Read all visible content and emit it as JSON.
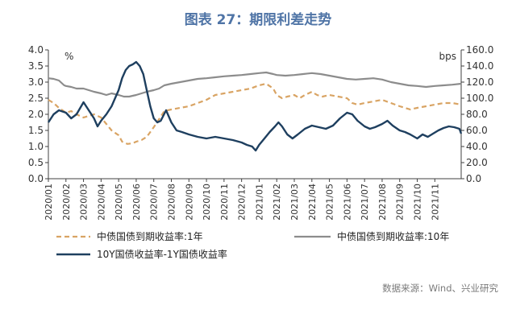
{
  "title": "图表 27：期限利差走势",
  "source": "数据来源：Wind、兴业研究",
  "chart_data": {
    "type": "line",
    "left_axis": {
      "unit": "%",
      "range": [
        0,
        4
      ],
      "ticks": [
        "0.0",
        "0.5",
        "1.0",
        "1.5",
        "2.0",
        "2.5",
        "3.0",
        "3.5",
        "4.0"
      ]
    },
    "right_axis": {
      "unit": "bps",
      "range": [
        0,
        160
      ],
      "ticks": [
        "0.0",
        "20.0",
        "40.0",
        "60.0",
        "80.0",
        "100.0",
        "120.0",
        "140.0",
        "160.0"
      ]
    },
    "x_range": [
      0,
      23.5
    ],
    "x_ticks": [
      "2020/01",
      "2020/02",
      "2020/03",
      "2020/04",
      "2020/05",
      "2020/06",
      "2020/07",
      "2020/08",
      "2020/09",
      "2020/10",
      "2020/11",
      "2020/12",
      "2021/01",
      "2021/02",
      "2021/03",
      "2021/04",
      "2021/05",
      "2021/06",
      "2021/07",
      "2021/08",
      "2021/09",
      "2021/10",
      "2021/11"
    ],
    "legend": [
      {
        "key": "y1",
        "label": "中债国债到期收益率:1年"
      },
      {
        "key": "y10",
        "label": "中债国债到期收益率:10年"
      },
      {
        "key": "spread",
        "label": "10Y国债收益率-1Y国债收益率"
      }
    ],
    "series": {
      "y1": {
        "axis": "left",
        "color": "#d9a464",
        "dash": true,
        "points": [
          [
            0,
            2.45
          ],
          [
            0.3,
            2.35
          ],
          [
            0.6,
            2.2
          ],
          [
            1.0,
            2.05
          ],
          [
            1.3,
            2.1
          ],
          [
            1.6,
            2.0
          ],
          [
            2.0,
            1.9
          ],
          [
            2.3,
            1.95
          ],
          [
            2.6,
            2.0
          ],
          [
            3.0,
            1.9
          ],
          [
            3.3,
            1.7
          ],
          [
            3.6,
            1.5
          ],
          [
            4.0,
            1.35
          ],
          [
            4.2,
            1.15
          ],
          [
            4.5,
            1.08
          ],
          [
            4.8,
            1.1
          ],
          [
            5.0,
            1.15
          ],
          [
            5.3,
            1.2
          ],
          [
            5.6,
            1.3
          ],
          [
            5.8,
            1.45
          ],
          [
            6.0,
            1.6
          ],
          [
            6.3,
            1.85
          ],
          [
            6.6,
            2.1
          ],
          [
            7.0,
            2.15
          ],
          [
            7.5,
            2.2
          ],
          [
            8.0,
            2.25
          ],
          [
            8.5,
            2.35
          ],
          [
            9.0,
            2.45
          ],
          [
            9.5,
            2.6
          ],
          [
            10.0,
            2.65
          ],
          [
            10.5,
            2.7
          ],
          [
            11.0,
            2.75
          ],
          [
            11.5,
            2.8
          ],
          [
            12.0,
            2.9
          ],
          [
            12.4,
            2.95
          ],
          [
            12.8,
            2.8
          ],
          [
            13.0,
            2.6
          ],
          [
            13.3,
            2.5
          ],
          [
            13.6,
            2.55
          ],
          [
            14.0,
            2.6
          ],
          [
            14.3,
            2.5
          ],
          [
            14.6,
            2.6
          ],
          [
            15.0,
            2.7
          ],
          [
            15.3,
            2.6
          ],
          [
            15.6,
            2.55
          ],
          [
            16.0,
            2.6
          ],
          [
            16.5,
            2.55
          ],
          [
            17.0,
            2.5
          ],
          [
            17.3,
            2.35
          ],
          [
            17.6,
            2.3
          ],
          [
            18.0,
            2.35
          ],
          [
            18.5,
            2.4
          ],
          [
            19.0,
            2.45
          ],
          [
            19.5,
            2.35
          ],
          [
            20.0,
            2.25
          ],
          [
            20.3,
            2.2
          ],
          [
            20.6,
            2.15
          ],
          [
            21.0,
            2.2
          ],
          [
            21.5,
            2.25
          ],
          [
            22.0,
            2.3
          ],
          [
            22.5,
            2.35
          ],
          [
            23.0,
            2.35
          ],
          [
            23.5,
            2.3
          ]
        ]
      },
      "y10": {
        "axis": "left",
        "color": "#8c8c8c",
        "dash": false,
        "points": [
          [
            0,
            3.12
          ],
          [
            0.3,
            3.1
          ],
          [
            0.6,
            3.05
          ],
          [
            0.9,
            2.9
          ],
          [
            1.0,
            2.88
          ],
          [
            1.3,
            2.85
          ],
          [
            1.6,
            2.8
          ],
          [
            2.0,
            2.8
          ],
          [
            2.3,
            2.75
          ],
          [
            2.6,
            2.7
          ],
          [
            3.0,
            2.65
          ],
          [
            3.3,
            2.6
          ],
          [
            3.6,
            2.65
          ],
          [
            4.0,
            2.6
          ],
          [
            4.3,
            2.55
          ],
          [
            4.6,
            2.55
          ],
          [
            5.0,
            2.6
          ],
          [
            5.3,
            2.65
          ],
          [
            5.6,
            2.7
          ],
          [
            6.0,
            2.75
          ],
          [
            6.3,
            2.8
          ],
          [
            6.6,
            2.9
          ],
          [
            7.0,
            2.95
          ],
          [
            7.5,
            3.0
          ],
          [
            8.0,
            3.05
          ],
          [
            8.5,
            3.1
          ],
          [
            9.0,
            3.12
          ],
          [
            9.5,
            3.15
          ],
          [
            10.0,
            3.18
          ],
          [
            10.5,
            3.2
          ],
          [
            11.0,
            3.22
          ],
          [
            11.5,
            3.25
          ],
          [
            12.0,
            3.28
          ],
          [
            12.4,
            3.3
          ],
          [
            12.8,
            3.25
          ],
          [
            13.0,
            3.22
          ],
          [
            13.5,
            3.2
          ],
          [
            14.0,
            3.22
          ],
          [
            14.5,
            3.25
          ],
          [
            15.0,
            3.28
          ],
          [
            15.5,
            3.25
          ],
          [
            16.0,
            3.2
          ],
          [
            16.5,
            3.15
          ],
          [
            17.0,
            3.1
          ],
          [
            17.5,
            3.08
          ],
          [
            18.0,
            3.1
          ],
          [
            18.5,
            3.12
          ],
          [
            19.0,
            3.08
          ],
          [
            19.5,
            3.0
          ],
          [
            20.0,
            2.95
          ],
          [
            20.5,
            2.9
          ],
          [
            21.0,
            2.88
          ],
          [
            21.5,
            2.85
          ],
          [
            22.0,
            2.88
          ],
          [
            22.5,
            2.9
          ],
          [
            23.0,
            2.92
          ],
          [
            23.5,
            2.95
          ]
        ]
      },
      "spread": {
        "axis": "right",
        "color": "#1e3f5f",
        "dash": false,
        "points": [
          [
            0,
            70
          ],
          [
            0.3,
            80
          ],
          [
            0.6,
            85
          ],
          [
            1.0,
            82
          ],
          [
            1.3,
            75
          ],
          [
            1.6,
            80
          ],
          [
            2.0,
            95
          ],
          [
            2.3,
            85
          ],
          [
            2.6,
            75
          ],
          [
            2.8,
            65
          ],
          [
            3.0,
            72
          ],
          [
            3.3,
            80
          ],
          [
            3.6,
            90
          ],
          [
            4.0,
            110
          ],
          [
            4.2,
            125
          ],
          [
            4.4,
            135
          ],
          [
            4.6,
            140
          ],
          [
            4.8,
            142
          ],
          [
            5.0,
            145
          ],
          [
            5.2,
            140
          ],
          [
            5.4,
            130
          ],
          [
            5.6,
            110
          ],
          [
            5.8,
            90
          ],
          [
            6.0,
            75
          ],
          [
            6.2,
            70
          ],
          [
            6.4,
            72
          ],
          [
            6.7,
            85
          ],
          [
            7.0,
            70
          ],
          [
            7.3,
            60
          ],
          [
            7.6,
            58
          ],
          [
            8.0,
            55
          ],
          [
            8.5,
            52
          ],
          [
            9.0,
            50
          ],
          [
            9.5,
            52
          ],
          [
            10.0,
            50
          ],
          [
            10.5,
            48
          ],
          [
            11.0,
            45
          ],
          [
            11.3,
            42
          ],
          [
            11.6,
            40
          ],
          [
            11.8,
            35
          ],
          [
            12.0,
            42
          ],
          [
            12.3,
            50
          ],
          [
            12.6,
            58
          ],
          [
            12.9,
            65
          ],
          [
            13.1,
            70
          ],
          [
            13.3,
            65
          ],
          [
            13.6,
            55
          ],
          [
            13.9,
            50
          ],
          [
            14.2,
            55
          ],
          [
            14.6,
            62
          ],
          [
            15.0,
            66
          ],
          [
            15.4,
            64
          ],
          [
            15.8,
            62
          ],
          [
            16.2,
            66
          ],
          [
            16.6,
            75
          ],
          [
            17.0,
            82
          ],
          [
            17.3,
            80
          ],
          [
            17.6,
            72
          ],
          [
            18.0,
            65
          ],
          [
            18.3,
            62
          ],
          [
            18.6,
            64
          ],
          [
            19.0,
            68
          ],
          [
            19.3,
            72
          ],
          [
            19.6,
            66
          ],
          [
            20.0,
            60
          ],
          [
            20.3,
            58
          ],
          [
            20.6,
            55
          ],
          [
            21.0,
            50
          ],
          [
            21.3,
            55
          ],
          [
            21.6,
            52
          ],
          [
            21.9,
            56
          ],
          [
            22.2,
            60
          ],
          [
            22.5,
            63
          ],
          [
            22.8,
            65
          ],
          [
            23.1,
            64
          ],
          [
            23.4,
            62
          ],
          [
            23.5,
            56
          ]
        ]
      }
    }
  }
}
